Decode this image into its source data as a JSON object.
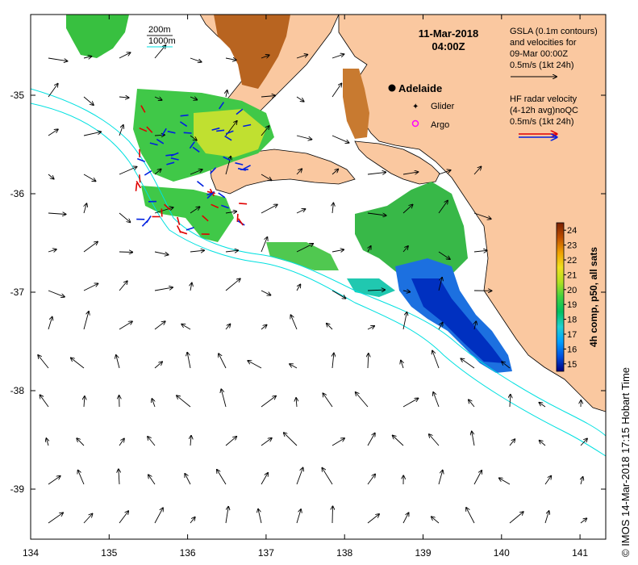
{
  "title": {
    "date": "11-Mar-2018",
    "time": "04:00Z"
  },
  "depth_legend": {
    "d200": "200m",
    "d1000": "1000m",
    "color_200": "#1a1a1a",
    "color_1000": "#00e0e0"
  },
  "gsla_note": {
    "line1": "GSLA (0.1m contours)",
    "line2": "and velocities for",
    "line3": "09-Mar 00:00Z",
    "line4": "0.5m/s (1kt 24h)"
  },
  "radar_note": {
    "line1": "HF radar velocity",
    "line2": "(4-12h avg)noQC",
    "line3": "0.5m/s (1kt 24h)"
  },
  "places": {
    "adelaide": "Adelaide",
    "glider": "Glider",
    "argo": "Argo"
  },
  "colorbar": {
    "title": "4h comp, p50, all sats",
    "ticks": [
      "24",
      "23",
      "22",
      "21",
      "20",
      "19",
      "18",
      "17",
      "16",
      "15"
    ],
    "min": 14.5,
    "max": 24.5,
    "colors": [
      "#000080",
      "#0050e0",
      "#00a0ff",
      "#20d0d0",
      "#00c060",
      "#40d040",
      "#b0e020",
      "#f0e020",
      "#f0a000",
      "#c05000",
      "#7a2000"
    ]
  },
  "axes": {
    "x_ticks": [
      "134",
      "135",
      "136",
      "137",
      "138",
      "139",
      "140",
      "141"
    ],
    "y_ticks": [
      "-35",
      "-36",
      "-37",
      "-38",
      "-39"
    ]
  },
  "copyright": "© IMOS 14-Mar-2018 17:15 Hobart Time",
  "colors": {
    "land": "#fac8a0",
    "radar_a": "#e00000",
    "radar_b": "#0020e0",
    "contour": "#00e0e0"
  }
}
